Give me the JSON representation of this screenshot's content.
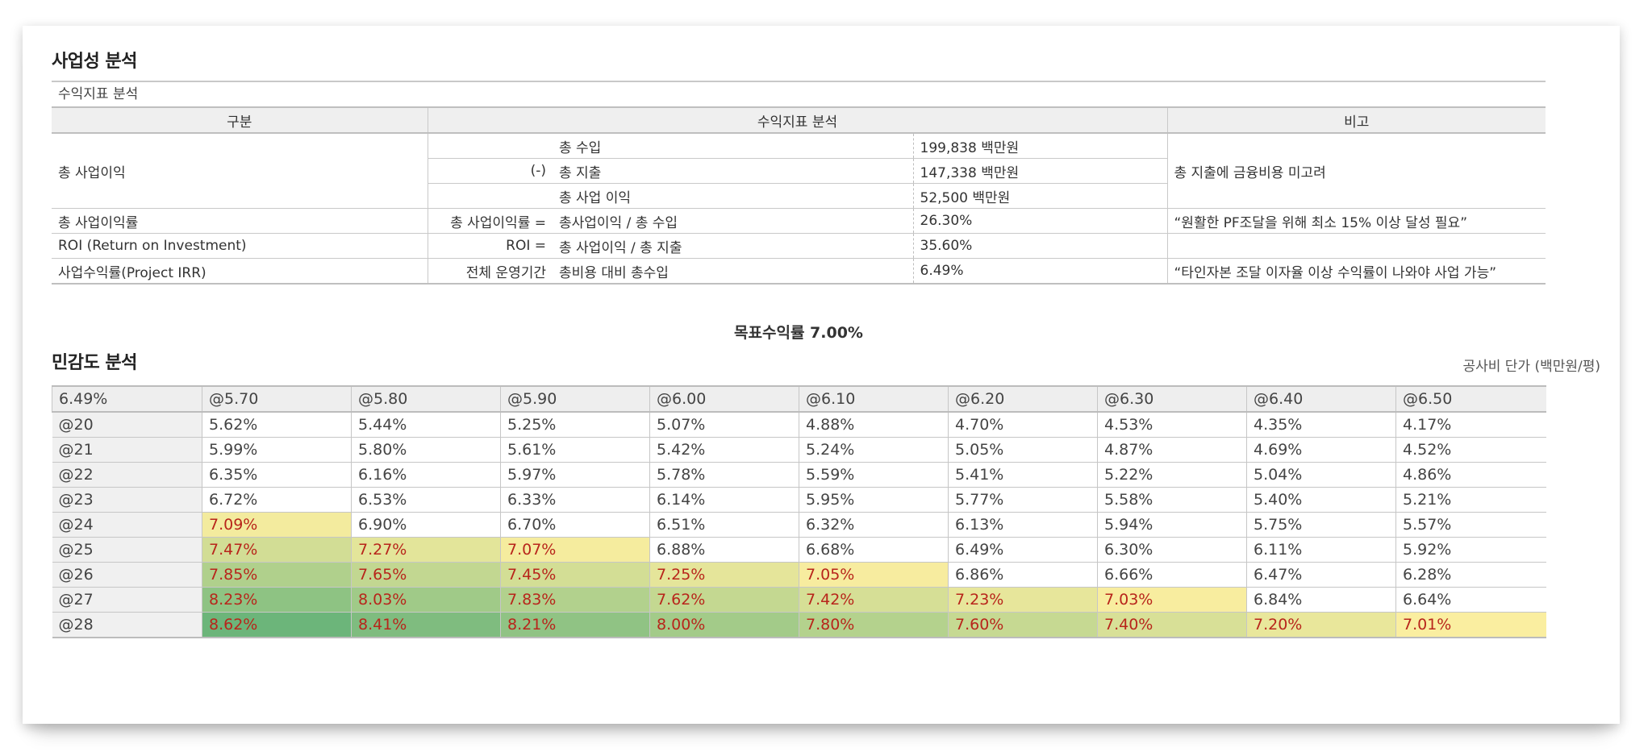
{
  "section1": {
    "title": "사업성 분석"
  },
  "profit_table": {
    "caption": "수익지표 분석",
    "headers": [
      "구분",
      "수익지표 분석",
      "비고"
    ],
    "row_total_profit_label": "총 사업이익",
    "rows": [
      {
        "formula_prefix": "",
        "formula": "총 수입",
        "value": "199,838 백만원"
      },
      {
        "formula_prefix": "(-)",
        "formula": "총 지출",
        "value": "147,338 백만원"
      },
      {
        "formula_prefix": "",
        "formula": "총 사업 이익",
        "value": "52,500 백만원"
      }
    ],
    "total_profit_note": "총 지출에 금융비용 미고려",
    "rate_rows": [
      {
        "label": "총 사업이익률",
        "formula_prefix": "총 사업이익률 =",
        "formula": "총사업이익 / 총 수입",
        "value": "26.30%",
        "note": "“원활한 PF조달을 위해 최소 15% 이상 달성 필요”"
      },
      {
        "label": "ROI (Return on Investment)",
        "formula_prefix": "ROI =",
        "formula": "총 사업이익 / 총 지출",
        "value": "35.60%",
        "note": ""
      },
      {
        "label": "사업수익률(Project IRR)",
        "formula_prefix": "전체 운영기간",
        "formula": "총비용 대비 총수입",
        "value": "6.49%",
        "note": "“타인자본 조달 이자율 이상 수익률이 나와야 사업 가능”"
      }
    ]
  },
  "target_rate": "목표수익률 7.00%",
  "section2": {
    "title": "민감도 분석",
    "unit": "공사비 단가 (백만원/평)"
  },
  "sensitivity": {
    "corner": "6.49%",
    "columns": [
      "@5.70",
      "@5.80",
      "@5.90",
      "@6.00",
      "@6.10",
      "@6.20",
      "@6.30",
      "@6.40",
      "@6.50"
    ],
    "rows": [
      {
        "label": "@20",
        "values": [
          "5.62%",
          "5.44%",
          "5.25%",
          "5.07%",
          "4.88%",
          "4.70%",
          "4.53%",
          "4.35%",
          "4.17%"
        ]
      },
      {
        "label": "@21",
        "values": [
          "5.99%",
          "5.80%",
          "5.61%",
          "5.42%",
          "5.24%",
          "5.05%",
          "4.87%",
          "4.69%",
          "4.52%"
        ]
      },
      {
        "label": "@22",
        "values": [
          "6.35%",
          "6.16%",
          "5.97%",
          "5.78%",
          "5.59%",
          "5.41%",
          "5.22%",
          "5.04%",
          "4.86%"
        ]
      },
      {
        "label": "@23",
        "values": [
          "6.72%",
          "6.53%",
          "6.33%",
          "6.14%",
          "5.95%",
          "5.77%",
          "5.58%",
          "5.40%",
          "5.21%"
        ]
      },
      {
        "label": "@24",
        "values": [
          "7.09%",
          "6.90%",
          "6.70%",
          "6.51%",
          "6.32%",
          "6.13%",
          "5.94%",
          "5.75%",
          "5.57%"
        ]
      },
      {
        "label": "@25",
        "values": [
          "7.47%",
          "7.27%",
          "7.07%",
          "6.88%",
          "6.68%",
          "6.49%",
          "6.30%",
          "6.11%",
          "5.92%"
        ]
      },
      {
        "label": "@26",
        "values": [
          "7.85%",
          "7.65%",
          "7.45%",
          "7.25%",
          "7.05%",
          "6.86%",
          "6.66%",
          "6.47%",
          "6.28%"
        ]
      },
      {
        "label": "@27",
        "values": [
          "8.23%",
          "8.03%",
          "7.83%",
          "7.62%",
          "7.42%",
          "7.23%",
          "7.03%",
          "6.84%",
          "6.64%"
        ]
      },
      {
        "label": "@28",
        "values": [
          "8.62%",
          "8.41%",
          "8.21%",
          "8.00%",
          "7.80%",
          "7.60%",
          "7.40%",
          "7.20%",
          "7.01%"
        ]
      }
    ],
    "highlight_threshold": 7.0,
    "colors": {
      "low": "#fbeea0",
      "high": "#6cb57a",
      "text_highlight": "#b8251b"
    }
  }
}
